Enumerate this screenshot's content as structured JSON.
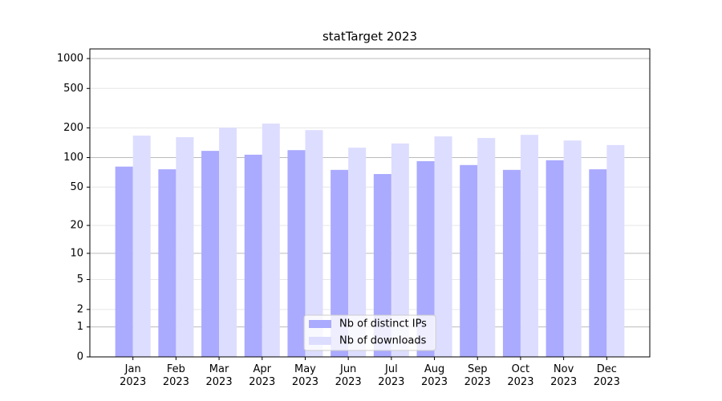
{
  "chart_data": {
    "type": "bar",
    "title": "statTarget 2023",
    "categories": [
      "Jan\n2023",
      "Feb\n2023",
      "Mar\n2023",
      "Apr\n2023",
      "May\n2023",
      "Jun\n2023",
      "Jul\n2023",
      "Aug\n2023",
      "Sep\n2023",
      "Oct\n2023",
      "Nov\n2023",
      "Dec\n2023"
    ],
    "series": [
      {
        "name": "Nb of distinct IPs",
        "color": "#aaaaff",
        "values": [
          81,
          76,
          117,
          107,
          119,
          75,
          68,
          92,
          84,
          75,
          94,
          76
        ]
      },
      {
        "name": "Nb of downloads",
        "color": "#ddddff",
        "values": [
          167,
          161,
          201,
          221,
          190,
          126,
          139,
          164,
          158,
          170,
          149,
          134
        ]
      }
    ],
    "yscale": "log1p",
    "ylim": [
      0,
      1250
    ],
    "yticks": [
      0,
      1,
      2,
      5,
      10,
      20,
      50,
      100,
      200,
      500,
      1000
    ],
    "grid": true,
    "legend": "lower center"
  }
}
